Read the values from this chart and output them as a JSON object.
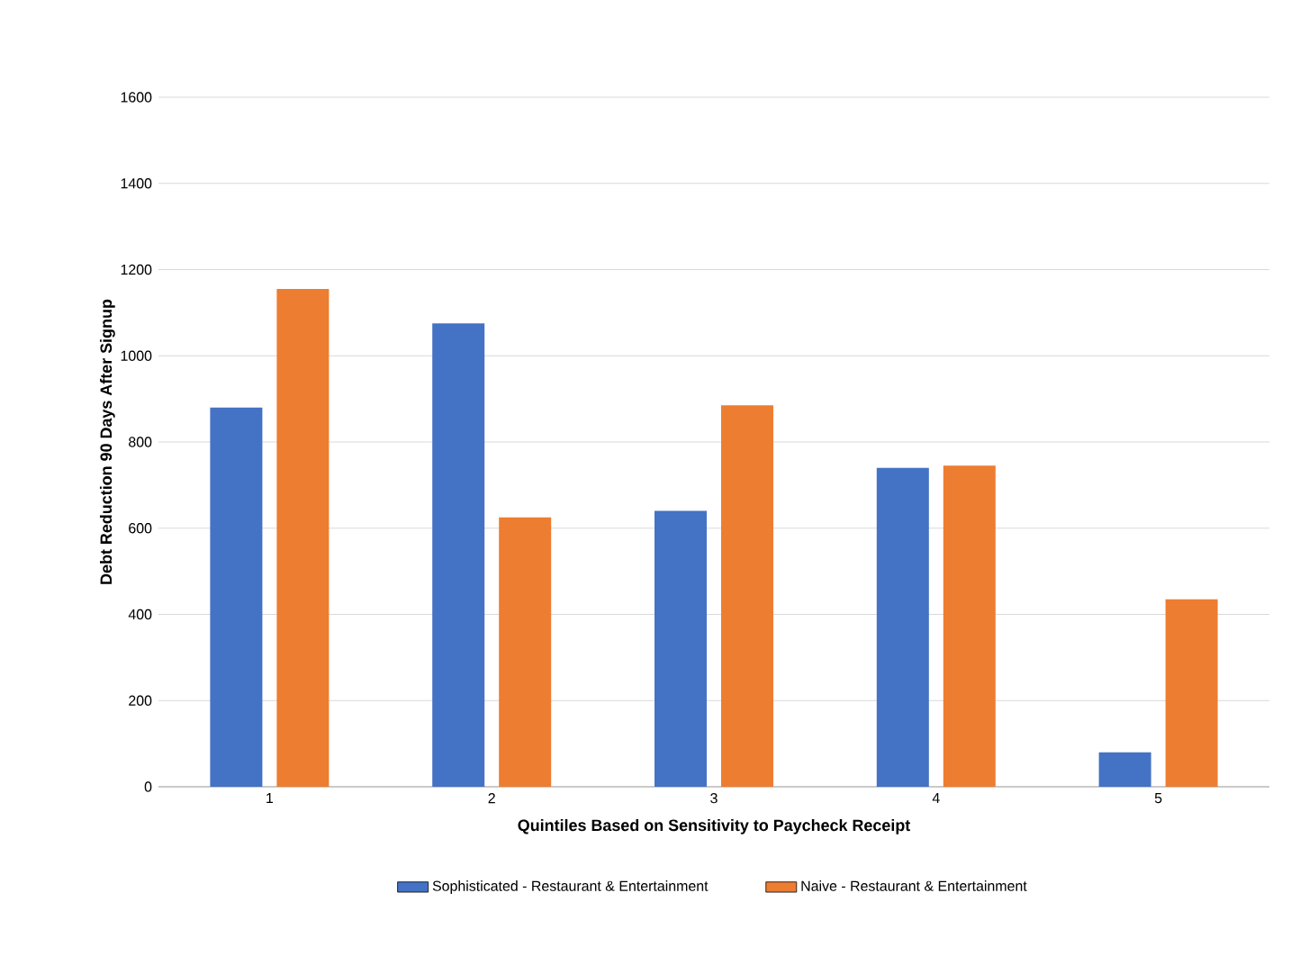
{
  "chart_data": {
    "type": "bar",
    "xlabel": "Quintiles Based on Sensitivity to Paycheck Receipt",
    "ylabel": "Debt Reduction 90 Days After Signup",
    "categories": [
      "1",
      "2",
      "3",
      "4",
      "5"
    ],
    "series": [
      {
        "name": "Sophisticated - Restaurant & Entertainment",
        "color": "#4472c4",
        "values": [
          880,
          1075,
          640,
          740,
          80
        ]
      },
      {
        "name": "Naive - Restaurant & Entertainment",
        "color": "#ed7d31",
        "values": [
          1155,
          625,
          885,
          745,
          435
        ]
      }
    ],
    "ylim": [
      0,
      1600
    ],
    "yticks": [
      0,
      200,
      400,
      600,
      800,
      1000,
      1200,
      1400,
      1600
    ],
    "grid": "y",
    "legend": "bottom"
  }
}
